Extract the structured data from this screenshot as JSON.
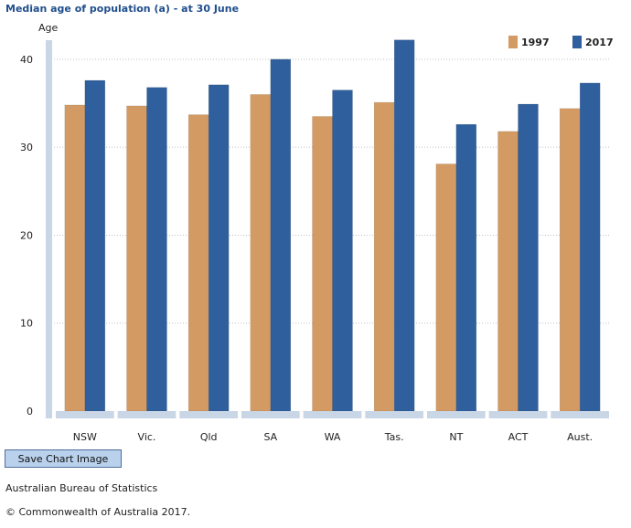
{
  "page": {
    "save_button_label": "Save Chart Image",
    "source": "Australian Bureau of Statistics",
    "copyright": "© Commonwealth of Australia 2017."
  },
  "chart_data": {
    "type": "bar",
    "title": "Median age of population (a) - at 30 June",
    "ylabel": "Age",
    "xlabel": "",
    "ylim": [
      0,
      43
    ],
    "yticks": [
      0,
      10,
      20,
      30,
      40
    ],
    "grid": true,
    "legend_position": "top-right",
    "categories": [
      "NSW",
      "Vic.",
      "Qld",
      "SA",
      "WA",
      "Tas.",
      "NT",
      "ACT",
      "Aust."
    ],
    "series": [
      {
        "name": "1997",
        "color": "#d39a63",
        "values": [
          34.8,
          34.7,
          33.7,
          36.0,
          33.5,
          35.1,
          28.1,
          31.8,
          34.4
        ]
      },
      {
        "name": "2017",
        "color": "#2f5f9c",
        "values": [
          37.6,
          36.8,
          37.1,
          40.0,
          36.5,
          42.2,
          32.6,
          34.9,
          37.3
        ]
      }
    ]
  }
}
